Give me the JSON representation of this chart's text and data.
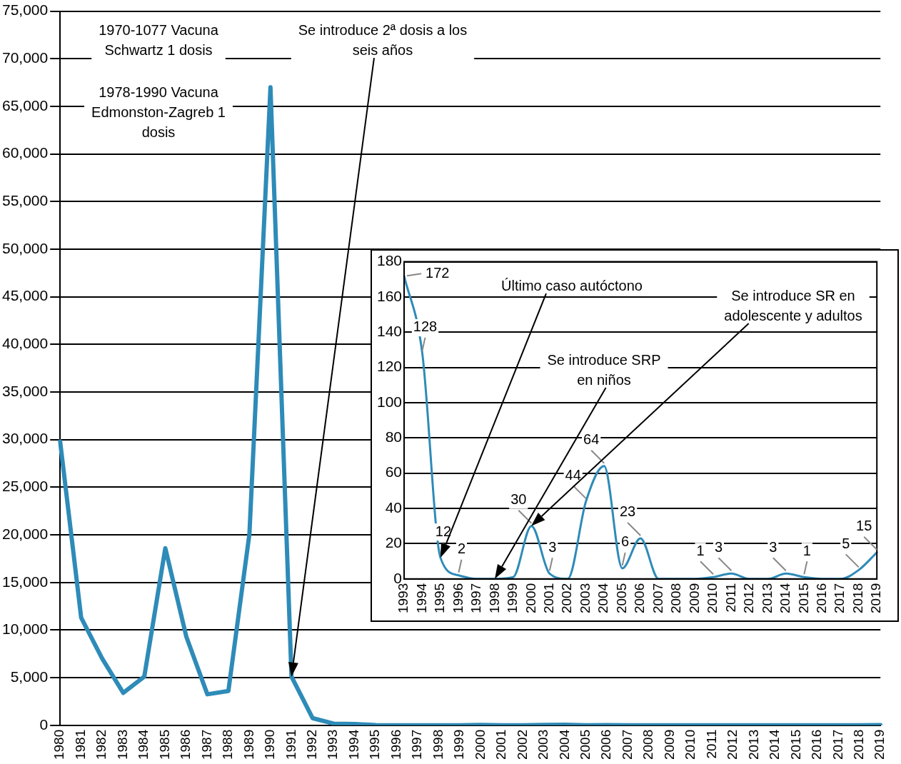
{
  "chart_data": [
    {
      "type": "line",
      "categories": [
        "1980",
        "1981",
        "1982",
        "1983",
        "1984",
        "1985",
        "1986",
        "1987",
        "1988",
        "1989",
        "1990",
        "1991",
        "1992",
        "1993",
        "1994",
        "1995",
        "1996",
        "1997",
        "1998",
        "1999",
        "2000",
        "2001",
        "2002",
        "2003",
        "2004",
        "2005",
        "2006",
        "2007",
        "2008",
        "2009",
        "2010",
        "2011",
        "2012",
        "2013",
        "2014",
        "2015",
        "2016",
        "2017",
        "2018",
        "2019"
      ],
      "series": [
        {
          "color": "#2e8bb8",
          "values": [
            29800,
            11300,
            7000,
            3400,
            5100,
            18600,
            9300,
            3250,
            3600,
            20100,
            67000,
            5100,
            750,
            172,
            128,
            12,
            2,
            0,
            0,
            1,
            30,
            3,
            0,
            44,
            64,
            6,
            23,
            0,
            0,
            0,
            1,
            3,
            0,
            0,
            3,
            1,
            0,
            0,
            5,
            15
          ]
        }
      ],
      "ylim": [
        0,
        75000
      ],
      "yticks": [
        0,
        {
          "value": 5000,
          "label": "5,000"
        },
        {
          "value": 10000,
          "label": "10,000"
        },
        {
          "value": 15000,
          "label": "15,000"
        },
        {
          "value": 20000,
          "label": "20,000"
        },
        {
          "value": 25000,
          "label": "25,000"
        },
        {
          "value": 30000,
          "label": "30,000"
        },
        {
          "value": 35000,
          "label": "35,000"
        },
        {
          "value": 40000,
          "label": "40,000"
        },
        {
          "value": 45000,
          "label": "45,000"
        },
        {
          "value": 50000,
          "label": "50,000"
        },
        {
          "value": 55000,
          "label": "55,000"
        },
        {
          "value": 60000,
          "label": "60,000"
        },
        {
          "value": 65000,
          "label": "65,000"
        },
        {
          "value": 70000,
          "label": "70,000"
        },
        {
          "value": 75000,
          "label": "75,000"
        }
      ],
      "grid": "y",
      "marker": "none",
      "line_style": "solid",
      "annotations": [
        "1970-1077 Vacuna Schwartz 1 dosis",
        "1978-1990 Vacuna Edmonston-Zagreb 1 dosis",
        "Se introduce 2ª dosis a los seis años"
      ]
    },
    {
      "type": "line",
      "categories": [
        "1993",
        "1994",
        "1995",
        "1996",
        "1997",
        "1998",
        "1999",
        "2000",
        "2001",
        "2002",
        "2003",
        "2004",
        "2005",
        "2006",
        "2007",
        "2008",
        "2009",
        "2010",
        "2011",
        "2012",
        "2013",
        "2014",
        "2015",
        "2016",
        "2017",
        "2018",
        "2019"
      ],
      "series": [
        {
          "color": "#2e8bb8",
          "values": [
            172,
            128,
            12,
            2,
            0,
            0,
            1,
            30,
            3,
            0,
            44,
            64,
            6,
            23,
            0,
            0,
            0,
            1,
            3,
            0,
            0,
            3,
            1,
            0,
            0,
            5,
            15
          ],
          "value_labels": [
            "172",
            "128",
            "12",
            "2",
            null,
            null,
            null,
            "30",
            "3",
            null,
            "44",
            "64",
            "6",
            "23",
            null,
            null,
            null,
            "1",
            "3",
            null,
            null,
            "3",
            "1",
            null,
            null,
            "5",
            "15"
          ]
        }
      ],
      "ylim": [
        0,
        180
      ],
      "yticks": [
        0,
        20,
        40,
        60,
        80,
        100,
        120,
        140,
        160,
        180
      ],
      "grid": "y",
      "marker": "none",
      "line_style": "solid",
      "annotations": [
        "Último caso autóctono",
        "Se introduce SRP en niños",
        "Se introduce SR en adolescente y adultos"
      ]
    }
  ]
}
